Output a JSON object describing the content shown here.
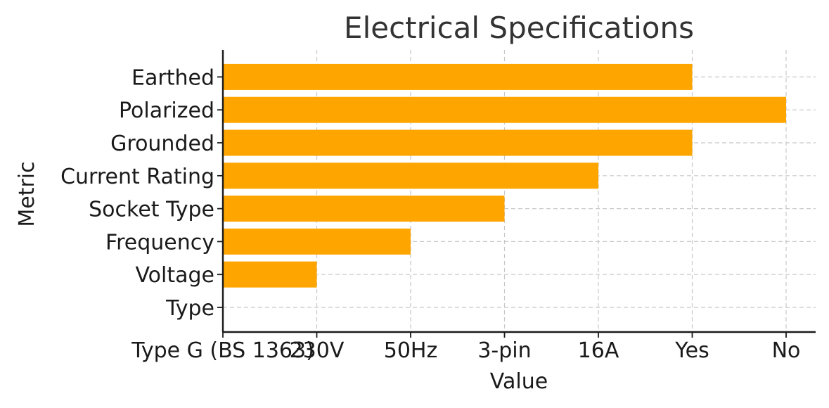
{
  "chart_data": {
    "type": "bar",
    "orientation": "horizontal",
    "title": "Electrical Specifications",
    "xlabel": "Value",
    "ylabel": "Metric",
    "categories": [
      "Type",
      "Voltage",
      "Frequency",
      "Socket Type",
      "Current Rating",
      "Grounded",
      "Polarized",
      "Earthed"
    ],
    "values": [
      0,
      1,
      2,
      3,
      4,
      5,
      6,
      5
    ],
    "x_tick_values": [
      0,
      1,
      2,
      3,
      4,
      5,
      6
    ],
    "x_tick_labels": [
      "Type G (BS 1363)",
      "230V",
      "50Hz",
      "3-pin",
      "16A",
      "Yes",
      "No"
    ],
    "xlim": [
      0,
      6.3
    ],
    "grid": true,
    "bar_color": "#FFA500"
  }
}
